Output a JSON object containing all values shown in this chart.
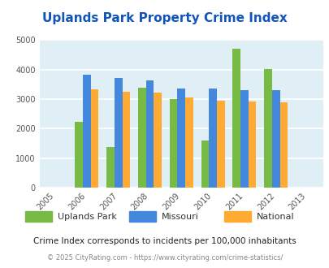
{
  "title": "Uplands Park Property Crime Index",
  "years": [
    2005,
    2006,
    2007,
    2008,
    2009,
    2010,
    2011,
    2012,
    2013
  ],
  "categories": [
    "Uplands Park",
    "Missouri",
    "National"
  ],
  "data": {
    "Uplands Park": {
      "2006": 2220,
      "2007": 1380,
      "2008": 3400,
      "2009": 3000,
      "2010": 1600,
      "2011": 4700,
      "2012": 4020
    },
    "Missouri": {
      "2006": 3840,
      "2007": 3730,
      "2008": 3650,
      "2009": 3370,
      "2010": 3360,
      "2011": 3310,
      "2012": 3300
    },
    "National": {
      "2006": 3340,
      "2007": 3240,
      "2008": 3210,
      "2009": 3050,
      "2010": 2960,
      "2011": 2930,
      "2012": 2880
    }
  },
  "colors": {
    "Uplands Park": "#77bb44",
    "Missouri": "#4488dd",
    "National": "#ffaa33"
  },
  "ylim": [
    0,
    5000
  ],
  "yticks": [
    0,
    1000,
    2000,
    3000,
    4000,
    5000
  ],
  "plot_bg_color": "#e0eff5",
  "grid_color": "#ffffff",
  "subtitle": "Crime Index corresponds to incidents per 100,000 inhabitants",
  "footer": "© 2025 CityRating.com - https://www.cityrating.com/crime-statistics/",
  "title_color": "#1155bb",
  "subtitle_color": "#222222",
  "footer_color": "#888888"
}
